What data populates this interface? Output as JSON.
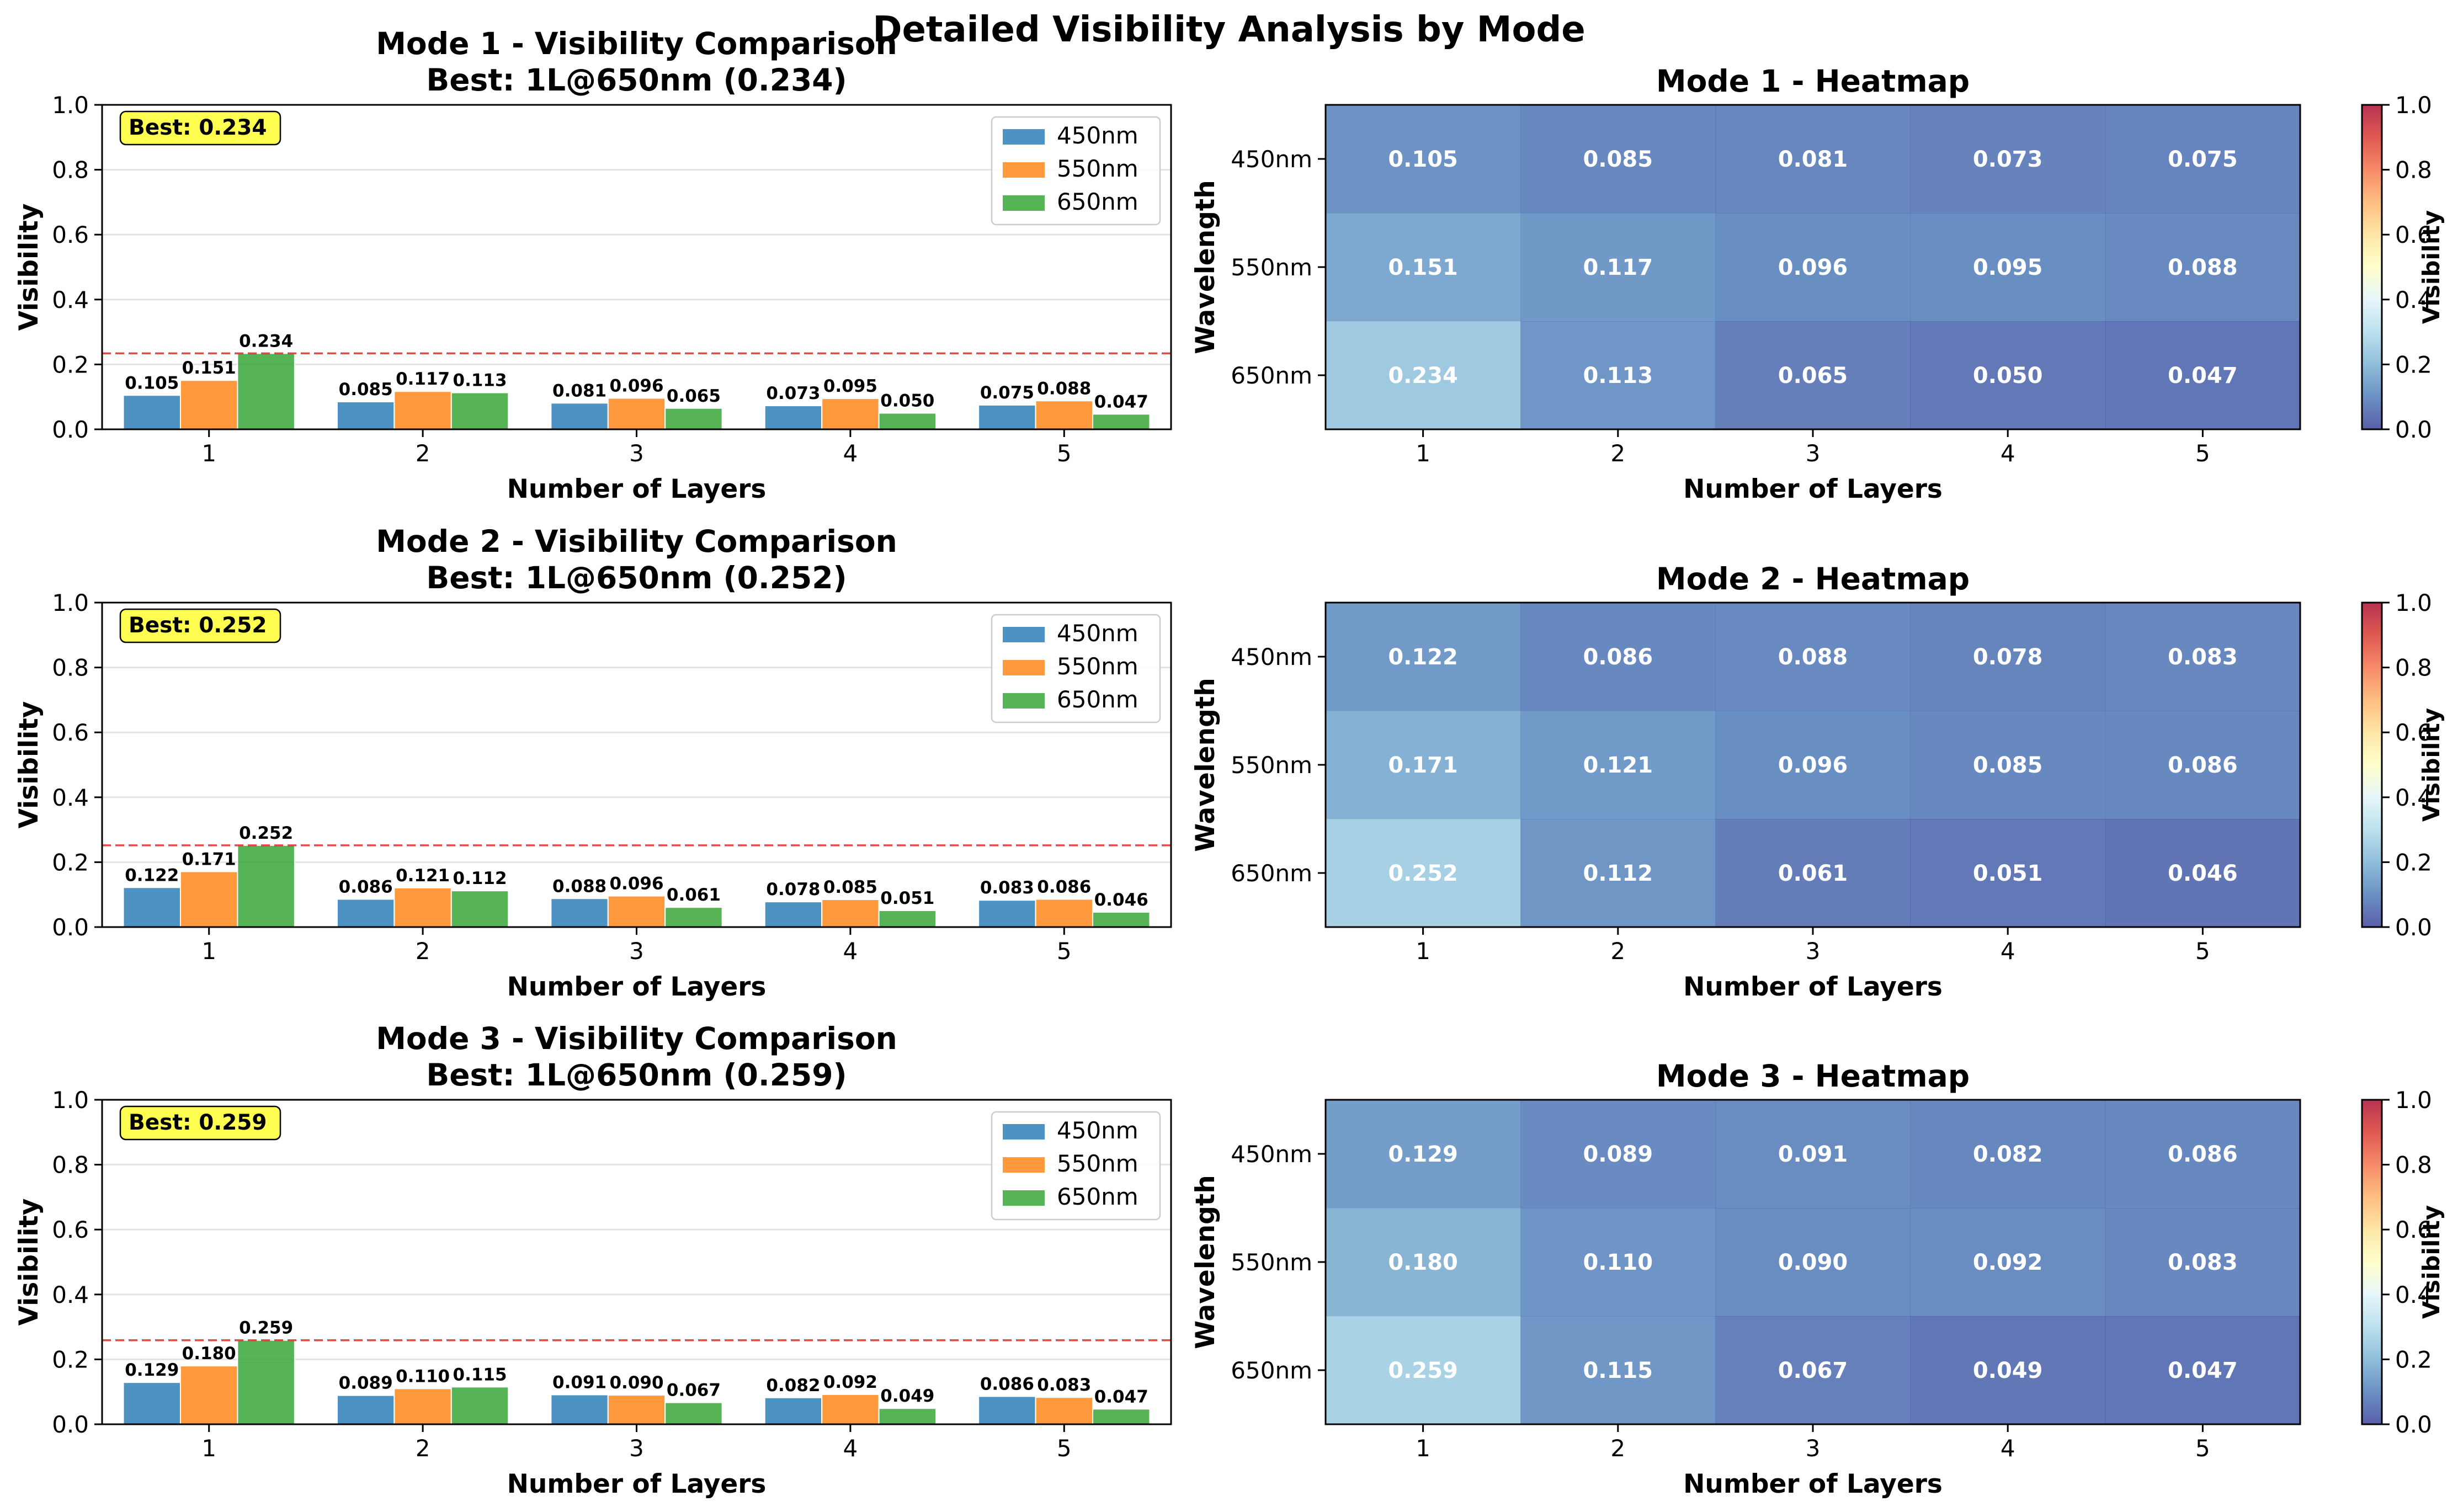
{
  "suptitle": "Detailed Visibility Analysis by Mode",
  "colors": {
    "s450": "#1f77b4",
    "s550": "#ff7f0e",
    "s650": "#2ca02c",
    "best_line": "#e31a1c",
    "best_box": "#ffff33"
  },
  "chart_data": [
    {
      "type": "bar",
      "title": "Mode 1 - Visibility Comparison",
      "subtitle": "Best: 1L@650nm (0.234)",
      "best_label": "Best: 0.234",
      "best_value": 0.234,
      "xlabel": "Number of Layers",
      "ylabel": "Visibility",
      "ylim": [
        0,
        1.0
      ],
      "yticks": [
        "0.0",
        "0.2",
        "0.4",
        "0.6",
        "0.8",
        "1.0"
      ],
      "categories": [
        "1",
        "2",
        "3",
        "4",
        "5"
      ],
      "legend_position": "top-right",
      "grid": "y",
      "series": [
        {
          "name": "450nm",
          "values": [
            0.105,
            0.085,
            0.081,
            0.073,
            0.075
          ],
          "labels": [
            "0.105",
            "0.085",
            "0.081",
            "0.073",
            "0.075"
          ]
        },
        {
          "name": "550nm",
          "values": [
            0.151,
            0.117,
            0.096,
            0.095,
            0.088
          ],
          "labels": [
            "0.151",
            "0.117",
            "0.096",
            "0.095",
            "0.088"
          ]
        },
        {
          "name": "650nm",
          "values": [
            0.234,
            0.113,
            0.065,
            0.05,
            0.047
          ],
          "labels": [
            "0.234",
            "0.113",
            "0.065",
            "0.050",
            "0.047"
          ]
        }
      ]
    },
    {
      "type": "heatmap",
      "title": "Mode 1 - Heatmap",
      "xlabel": "Number of Layers",
      "ylabel": "Wavelength",
      "colorbar_label": "Visibility",
      "clim": [
        0,
        1.0
      ],
      "colorbar_ticks": [
        "0.0",
        "0.2",
        "0.4",
        "0.6",
        "0.8",
        "1.0"
      ],
      "x": [
        "1",
        "2",
        "3",
        "4",
        "5"
      ],
      "y": [
        "450nm",
        "550nm",
        "650nm"
      ],
      "values": [
        [
          0.105,
          0.085,
          0.081,
          0.073,
          0.075
        ],
        [
          0.151,
          0.117,
          0.096,
          0.095,
          0.088
        ],
        [
          0.234,
          0.113,
          0.065,
          0.05,
          0.047
        ]
      ],
      "labels": [
        [
          "0.105",
          "0.085",
          "0.081",
          "0.073",
          "0.075"
        ],
        [
          "0.151",
          "0.117",
          "0.096",
          "0.095",
          "0.088"
        ],
        [
          "0.234",
          "0.113",
          "0.065",
          "0.050",
          "0.047"
        ]
      ]
    },
    {
      "type": "bar",
      "title": "Mode 2 - Visibility Comparison",
      "subtitle": "Best: 1L@650nm (0.252)",
      "best_label": "Best: 0.252",
      "best_value": 0.252,
      "xlabel": "Number of Layers",
      "ylabel": "Visibility",
      "ylim": [
        0,
        1.0
      ],
      "yticks": [
        "0.0",
        "0.2",
        "0.4",
        "0.6",
        "0.8",
        "1.0"
      ],
      "categories": [
        "1",
        "2",
        "3",
        "4",
        "5"
      ],
      "legend_position": "top-right",
      "grid": "y",
      "series": [
        {
          "name": "450nm",
          "values": [
            0.122,
            0.086,
            0.088,
            0.078,
            0.083
          ],
          "labels": [
            "0.122",
            "0.086",
            "0.088",
            "0.078",
            "0.083"
          ]
        },
        {
          "name": "550nm",
          "values": [
            0.171,
            0.121,
            0.096,
            0.085,
            0.086
          ],
          "labels": [
            "0.171",
            "0.121",
            "0.096",
            "0.085",
            "0.086"
          ]
        },
        {
          "name": "650nm",
          "values": [
            0.252,
            0.112,
            0.061,
            0.051,
            0.046
          ],
          "labels": [
            "0.252",
            "0.112",
            "0.061",
            "0.051",
            "0.046"
          ]
        }
      ]
    },
    {
      "type": "heatmap",
      "title": "Mode 2 - Heatmap",
      "xlabel": "Number of Layers",
      "ylabel": "Wavelength",
      "colorbar_label": "Visibility",
      "clim": [
        0,
        1.0
      ],
      "colorbar_ticks": [
        "0.0",
        "0.2",
        "0.4",
        "0.6",
        "0.8",
        "1.0"
      ],
      "x": [
        "1",
        "2",
        "3",
        "4",
        "5"
      ],
      "y": [
        "450nm",
        "550nm",
        "650nm"
      ],
      "values": [
        [
          0.122,
          0.086,
          0.088,
          0.078,
          0.083
        ],
        [
          0.171,
          0.121,
          0.096,
          0.085,
          0.086
        ],
        [
          0.252,
          0.112,
          0.061,
          0.051,
          0.046
        ]
      ],
      "labels": [
        [
          "0.122",
          "0.086",
          "0.088",
          "0.078",
          "0.083"
        ],
        [
          "0.171",
          "0.121",
          "0.096",
          "0.085",
          "0.086"
        ],
        [
          "0.252",
          "0.112",
          "0.061",
          "0.051",
          "0.046"
        ]
      ]
    },
    {
      "type": "bar",
      "title": "Mode 3 - Visibility Comparison",
      "subtitle": "Best: 1L@650nm (0.259)",
      "best_label": "Best: 0.259",
      "best_value": 0.259,
      "xlabel": "Number of Layers",
      "ylabel": "Visibility",
      "ylim": [
        0,
        1.0
      ],
      "yticks": [
        "0.0",
        "0.2",
        "0.4",
        "0.6",
        "0.8",
        "1.0"
      ],
      "categories": [
        "1",
        "2",
        "3",
        "4",
        "5"
      ],
      "legend_position": "top-right",
      "grid": "y",
      "series": [
        {
          "name": "450nm",
          "values": [
            0.129,
            0.089,
            0.091,
            0.082,
            0.086
          ],
          "labels": [
            "0.129",
            "0.089",
            "0.091",
            "0.082",
            "0.086"
          ]
        },
        {
          "name": "550nm",
          "values": [
            0.18,
            0.11,
            0.09,
            0.092,
            0.083
          ],
          "labels": [
            "0.180",
            "0.110",
            "0.090",
            "0.092",
            "0.083"
          ]
        },
        {
          "name": "650nm",
          "values": [
            0.259,
            0.115,
            0.067,
            0.049,
            0.047
          ],
          "labels": [
            "0.259",
            "0.115",
            "0.067",
            "0.049",
            "0.047"
          ]
        }
      ]
    },
    {
      "type": "heatmap",
      "title": "Mode 3 - Heatmap",
      "xlabel": "Number of Layers",
      "ylabel": "Wavelength",
      "colorbar_label": "Visibility",
      "clim": [
        0,
        1.0
      ],
      "colorbar_ticks": [
        "0.0",
        "0.2",
        "0.4",
        "0.6",
        "0.8",
        "1.0"
      ],
      "x": [
        "1",
        "2",
        "3",
        "4",
        "5"
      ],
      "y": [
        "450nm",
        "550nm",
        "650nm"
      ],
      "values": [
        [
          0.129,
          0.089,
          0.091,
          0.082,
          0.086
        ],
        [
          0.18,
          0.11,
          0.09,
          0.092,
          0.083
        ],
        [
          0.259,
          0.115,
          0.067,
          0.049,
          0.047
        ]
      ],
      "labels": [
        [
          "0.129",
          "0.089",
          "0.091",
          "0.082",
          "0.086"
        ],
        [
          "0.180",
          "0.110",
          "0.090",
          "0.092",
          "0.083"
        ],
        [
          "0.259",
          "0.115",
          "0.067",
          "0.049",
          "0.047"
        ]
      ]
    }
  ]
}
